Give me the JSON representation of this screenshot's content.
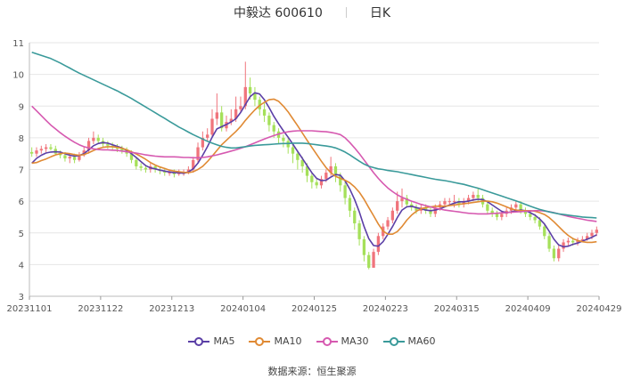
{
  "header": {
    "title": "中毅达 600610",
    "period": "日K"
  },
  "source": {
    "label": "数据来源：",
    "name": "恒生聚源"
  },
  "colors": {
    "up": "#f0747c",
    "down": "#a5e05a",
    "ma5": "#5b3fa6",
    "ma10": "#e08a34",
    "ma30": "#d659b0",
    "ma60": "#3a9a9a"
  },
  "chart_data": {
    "type": "line",
    "title": "中毅达 600610 日K",
    "ylim": [
      3,
      11
    ],
    "yticks": [
      3,
      4,
      5,
      6,
      7,
      8,
      9,
      10,
      11
    ],
    "xticks": [
      "20231101",
      "20231122",
      "20231213",
      "20240104",
      "20240125",
      "20240223",
      "20240315",
      "20240409",
      "20240429"
    ],
    "grid": true,
    "legend_position": "bottom",
    "candles": {
      "open": [
        7.55,
        7.5,
        7.6,
        7.65,
        7.7,
        7.65,
        7.5,
        7.45,
        7.35,
        7.4,
        7.3,
        7.45,
        7.6,
        7.9,
        8.0,
        7.9,
        7.8,
        7.75,
        7.7,
        7.65,
        7.6,
        7.5,
        7.3,
        7.1,
        7.05,
        7.0,
        7.1,
        7.0,
        6.95,
        6.9,
        6.9,
        6.85,
        6.9,
        6.9,
        7.0,
        7.3,
        7.7,
        8.0,
        8.1,
        8.6,
        8.8,
        8.3,
        8.5,
        8.6,
        8.9,
        9.0,
        9.6,
        9.4,
        9.2,
        8.9,
        8.7,
        8.4,
        8.2,
        8.0,
        7.9,
        7.7,
        7.5,
        7.3,
        7.1,
        6.8,
        6.6,
        6.5,
        6.7,
        6.9,
        7.1,
        6.8,
        6.5,
        6.1,
        5.7,
        5.3,
        4.8,
        4.3,
        3.9,
        4.4,
        4.9,
        5.2,
        5.4,
        5.7,
        6.0,
        6.1,
        5.9,
        5.8,
        5.7,
        5.8,
        5.7,
        5.6,
        5.8,
        5.9,
        6.0,
        6.0,
        6.0,
        5.9,
        6.0,
        6.1,
        6.2,
        6.1,
        5.9,
        5.7,
        5.6,
        5.5,
        5.6,
        5.7,
        5.8,
        5.9,
        5.7,
        5.6,
        5.5,
        5.4,
        5.2,
        4.9,
        4.5,
        4.2,
        4.5,
        4.7,
        4.75,
        4.7,
        4.75,
        4.8,
        4.9,
        5.0
      ],
      "close": [
        7.5,
        7.6,
        7.65,
        7.7,
        7.65,
        7.5,
        7.45,
        7.35,
        7.4,
        7.3,
        7.45,
        7.6,
        7.9,
        8.0,
        7.9,
        7.8,
        7.75,
        7.7,
        7.65,
        7.6,
        7.5,
        7.3,
        7.1,
        7.05,
        7.0,
        7.1,
        7.0,
        6.95,
        6.9,
        6.9,
        6.85,
        6.9,
        6.9,
        7.0,
        7.3,
        7.7,
        8.0,
        8.1,
        8.6,
        8.8,
        8.3,
        8.5,
        8.6,
        8.9,
        9.0,
        9.6,
        9.4,
        9.2,
        8.9,
        8.7,
        8.4,
        8.2,
        8.0,
        7.9,
        7.7,
        7.5,
        7.3,
        7.1,
        6.8,
        6.6,
        6.5,
        6.7,
        6.9,
        7.1,
        6.8,
        6.5,
        6.1,
        5.7,
        5.3,
        4.8,
        4.3,
        3.9,
        4.4,
        4.9,
        5.2,
        5.4,
        5.7,
        6.0,
        6.1,
        5.9,
        5.8,
        5.7,
        5.8,
        5.7,
        5.6,
        5.8,
        5.9,
        6.0,
        6.0,
        6.0,
        5.9,
        6.0,
        6.1,
        6.2,
        6.1,
        5.9,
        5.7,
        5.6,
        5.5,
        5.6,
        5.7,
        5.8,
        5.9,
        5.7,
        5.6,
        5.5,
        5.4,
        5.2,
        4.9,
        4.5,
        4.2,
        4.5,
        4.7,
        4.75,
        4.7,
        4.75,
        4.8,
        4.9,
        5.0,
        5.1
      ],
      "high": [
        7.7,
        7.7,
        7.75,
        7.8,
        7.8,
        7.75,
        7.6,
        7.55,
        7.5,
        7.5,
        7.55,
        7.7,
        8.0,
        8.2,
        8.1,
        8.0,
        7.9,
        7.85,
        7.8,
        7.75,
        7.7,
        7.6,
        7.4,
        7.2,
        7.15,
        7.2,
        7.15,
        7.1,
        7.05,
        7.0,
        7.0,
        7.0,
        7.0,
        7.1,
        7.4,
        7.85,
        8.2,
        8.3,
        8.9,
        9.4,
        9.0,
        8.7,
        8.9,
        9.3,
        9.3,
        10.4,
        9.9,
        9.6,
        9.3,
        9.1,
        8.8,
        8.5,
        8.3,
        8.1,
        8.0,
        7.8,
        7.6,
        7.4,
        7.2,
        6.9,
        6.7,
        6.8,
        7.0,
        7.4,
        7.2,
        6.9,
        6.6,
        6.2,
        5.8,
        5.4,
        4.9,
        4.4,
        4.5,
        5.0,
        5.3,
        5.5,
        5.8,
        6.3,
        6.4,
        6.2,
        6.0,
        5.9,
        5.9,
        5.9,
        5.8,
        5.9,
        6.0,
        6.1,
        6.1,
        6.2,
        6.1,
        6.1,
        6.2,
        6.3,
        6.4,
        6.2,
        6.0,
        5.8,
        5.7,
        5.7,
        5.8,
        5.9,
        6.0,
        6.0,
        5.8,
        5.7,
        5.6,
        5.5,
        5.3,
        5.0,
        4.6,
        4.6,
        4.8,
        4.85,
        4.85,
        4.85,
        4.9,
        5.0,
        5.1,
        5.2
      ],
      "low": [
        7.4,
        7.4,
        7.5,
        7.55,
        7.6,
        7.45,
        7.35,
        7.25,
        7.2,
        7.2,
        7.25,
        7.4,
        7.5,
        7.8,
        7.8,
        7.7,
        7.65,
        7.6,
        7.55,
        7.5,
        7.4,
        7.2,
        7.0,
        6.95,
        6.9,
        6.9,
        6.9,
        6.85,
        6.8,
        6.8,
        6.75,
        6.8,
        6.8,
        6.85,
        6.9,
        7.2,
        7.6,
        7.9,
        8.0,
        8.4,
        8.2,
        8.2,
        8.4,
        8.5,
        8.8,
        8.9,
        9.2,
        9.0,
        8.7,
        8.5,
        8.2,
        8.0,
        7.8,
        7.7,
        7.5,
        7.2,
        7.0,
        6.9,
        6.6,
        6.4,
        6.4,
        6.4,
        6.6,
        6.8,
        6.6,
        6.3,
        5.9,
        5.5,
        5.1,
        4.6,
        4.1,
        3.85,
        3.9,
        4.3,
        4.8,
        5.1,
        5.3,
        5.6,
        5.8,
        5.8,
        5.7,
        5.6,
        5.6,
        5.6,
        5.5,
        5.5,
        5.7,
        5.8,
        5.9,
        5.8,
        5.8,
        5.8,
        5.9,
        6.0,
        6.0,
        5.8,
        5.6,
        5.5,
        5.4,
        5.4,
        5.5,
        5.6,
        5.7,
        5.6,
        5.5,
        5.4,
        5.3,
        5.1,
        4.8,
        4.4,
        4.1,
        4.1,
        4.4,
        4.6,
        4.6,
        4.6,
        4.7,
        4.75,
        4.8,
        4.9
      ]
    },
    "series": [
      {
        "name": "MA5",
        "values": [
          7.2,
          7.35,
          7.45,
          7.52,
          7.55,
          7.56,
          7.55,
          7.5,
          7.45,
          7.42,
          7.44,
          7.5,
          7.62,
          7.75,
          7.82,
          7.85,
          7.83,
          7.78,
          7.73,
          7.68,
          7.6,
          7.5,
          7.38,
          7.25,
          7.12,
          7.05,
          7.02,
          6.98,
          6.95,
          6.92,
          6.9,
          6.9,
          6.88,
          6.92,
          7.02,
          7.2,
          7.45,
          7.72,
          8.02,
          8.28,
          8.35,
          8.42,
          8.5,
          8.6,
          8.8,
          9.05,
          9.3,
          9.42,
          9.38,
          9.2,
          8.95,
          8.68,
          8.44,
          8.22,
          8.02,
          7.8,
          7.57,
          7.35,
          7.12,
          6.9,
          6.72,
          6.65,
          6.66,
          6.76,
          6.84,
          6.82,
          6.64,
          6.38,
          6.05,
          5.66,
          5.2,
          4.82,
          4.6,
          4.58,
          4.72,
          4.95,
          5.2,
          5.48,
          5.72,
          5.82,
          5.84,
          5.8,
          5.76,
          5.72,
          5.7,
          5.72,
          5.76,
          5.82,
          5.88,
          5.94,
          5.98,
          5.98,
          6.0,
          6.04,
          6.06,
          6.05,
          5.98,
          5.88,
          5.78,
          5.68,
          5.64,
          5.66,
          5.7,
          5.72,
          5.7,
          5.64,
          5.56,
          5.44,
          5.28,
          5.05,
          4.8,
          4.62,
          4.56,
          4.58,
          4.64,
          4.68,
          4.74,
          4.8,
          4.86,
          4.94
        ]
      },
      {
        "name": "MA10",
        "values": [
          7.2,
          7.22,
          7.28,
          7.33,
          7.4,
          7.46,
          7.5,
          7.52,
          7.5,
          7.47,
          7.45,
          7.47,
          7.53,
          7.6,
          7.66,
          7.7,
          7.72,
          7.72,
          7.7,
          7.67,
          7.62,
          7.56,
          7.49,
          7.41,
          7.32,
          7.22,
          7.14,
          7.08,
          7.03,
          6.98,
          6.95,
          6.93,
          6.91,
          6.9,
          6.93,
          7.0,
          7.1,
          7.25,
          7.42,
          7.6,
          7.78,
          7.92,
          8.06,
          8.2,
          8.36,
          8.55,
          8.72,
          8.88,
          9.02,
          9.12,
          9.2,
          9.22,
          9.15,
          9.0,
          8.82,
          8.6,
          8.38,
          8.15,
          7.92,
          7.7,
          7.48,
          7.26,
          7.06,
          6.9,
          6.78,
          6.72,
          6.66,
          6.58,
          6.45,
          6.28,
          6.06,
          5.8,
          5.54,
          5.28,
          5.06,
          4.96,
          4.96,
          5.04,
          5.2,
          5.4,
          5.56,
          5.68,
          5.76,
          5.8,
          5.82,
          5.84,
          5.84,
          5.84,
          5.86,
          5.88,
          5.9,
          5.92,
          5.94,
          5.96,
          5.98,
          6.0,
          6.0,
          5.98,
          5.94,
          5.88,
          5.82,
          5.76,
          5.72,
          5.7,
          5.7,
          5.7,
          5.68,
          5.64,
          5.58,
          5.48,
          5.35,
          5.2,
          5.05,
          4.92,
          4.82,
          4.76,
          4.72,
          4.7,
          4.7,
          4.72
        ]
      },
      {
        "name": "MA30",
        "values": [
          9.0,
          8.85,
          8.7,
          8.55,
          8.4,
          8.28,
          8.16,
          8.05,
          7.95,
          7.86,
          7.78,
          7.72,
          7.68,
          7.65,
          7.63,
          7.62,
          7.62,
          7.61,
          7.6,
          7.58,
          7.56,
          7.54,
          7.52,
          7.49,
          7.46,
          7.44,
          7.42,
          7.41,
          7.4,
          7.4,
          7.4,
          7.39,
          7.38,
          7.38,
          7.37,
          7.37,
          7.38,
          7.4,
          7.43,
          7.46,
          7.5,
          7.54,
          7.58,
          7.62,
          7.67,
          7.72,
          7.78,
          7.84,
          7.9,
          7.96,
          8.02,
          8.07,
          8.12,
          8.16,
          8.19,
          8.21,
          8.22,
          8.22,
          8.22,
          8.22,
          8.21,
          8.2,
          8.19,
          8.17,
          8.14,
          8.1,
          8.0,
          7.85,
          7.68,
          7.5,
          7.3,
          7.1,
          6.9,
          6.72,
          6.56,
          6.42,
          6.3,
          6.2,
          6.12,
          6.06,
          6.0,
          5.95,
          5.9,
          5.86,
          5.82,
          5.78,
          5.75,
          5.72,
          5.7,
          5.68,
          5.66,
          5.64,
          5.62,
          5.61,
          5.6,
          5.6,
          5.6,
          5.61,
          5.62,
          5.63,
          5.64,
          5.65,
          5.66,
          5.67,
          5.68,
          5.69,
          5.7,
          5.7,
          5.69,
          5.67,
          5.64,
          5.6,
          5.56,
          5.52,
          5.49,
          5.46,
          5.43,
          5.4,
          5.38,
          5.36
        ]
      },
      {
        "name": "MA60",
        "values": [
          10.7,
          10.65,
          10.6,
          10.55,
          10.5,
          10.43,
          10.36,
          10.28,
          10.2,
          10.12,
          10.04,
          9.97,
          9.9,
          9.83,
          9.76,
          9.69,
          9.62,
          9.55,
          9.48,
          9.4,
          9.32,
          9.24,
          9.15,
          9.06,
          8.97,
          8.88,
          8.79,
          8.7,
          8.61,
          8.52,
          8.43,
          8.34,
          8.26,
          8.18,
          8.1,
          8.03,
          7.96,
          7.89,
          7.83,
          7.78,
          7.73,
          7.7,
          7.68,
          7.68,
          7.7,
          7.72,
          7.74,
          7.76,
          7.77,
          7.78,
          7.79,
          7.8,
          7.81,
          7.82,
          7.82,
          7.83,
          7.83,
          7.83,
          7.82,
          7.8,
          7.78,
          7.76,
          7.74,
          7.72,
          7.68,
          7.62,
          7.55,
          7.46,
          7.36,
          7.26,
          7.17,
          7.1,
          7.06,
          7.02,
          7.0,
          6.97,
          6.95,
          6.93,
          6.9,
          6.87,
          6.84,
          6.81,
          6.78,
          6.75,
          6.72,
          6.69,
          6.67,
          6.65,
          6.62,
          6.59,
          6.56,
          6.53,
          6.49,
          6.45,
          6.41,
          6.36,
          6.31,
          6.26,
          6.21,
          6.16,
          6.11,
          6.06,
          6.01,
          5.96,
          5.9,
          5.84,
          5.79,
          5.74,
          5.7,
          5.66,
          5.63,
          5.6,
          5.58,
          5.56,
          5.54,
          5.52,
          5.5,
          5.49,
          5.48,
          5.47
        ]
      }
    ]
  }
}
